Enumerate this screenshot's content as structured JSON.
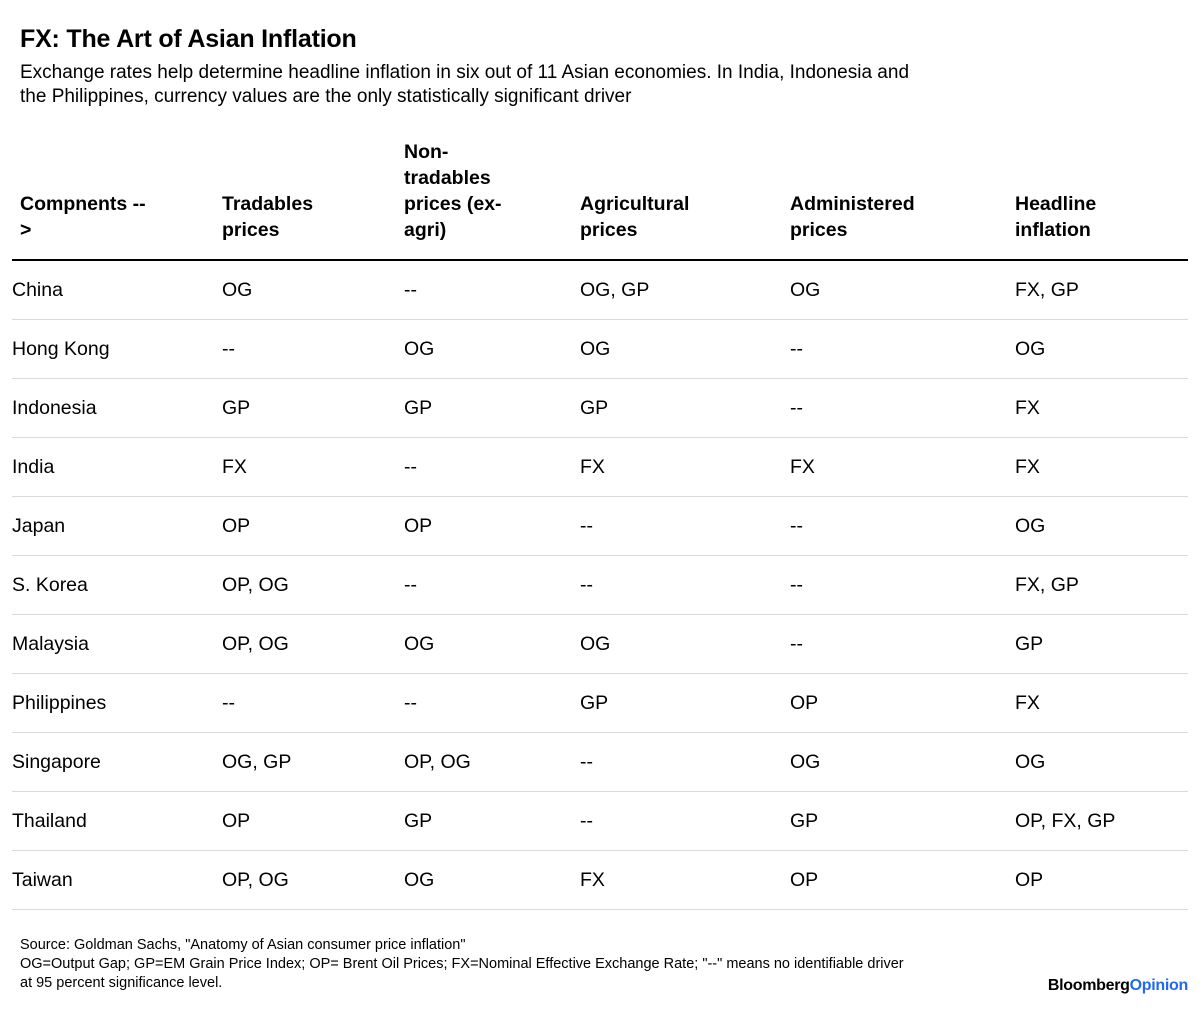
{
  "page": {
    "title": "FX: The Art of Asian Inflation",
    "subtitle": "Exchange rates help determine headline inflation in six out of 11 Asian economies. In India, Indonesia and\nthe Philippines, currency values are the only statistically significant driver"
  },
  "chart_data": {
    "type": "table",
    "title": "FX: The Art of Asian Inflation",
    "subtitle": "Exchange rates help determine headline inflation in six out of 11 Asian economies. In India, Indonesia and the Philippines, currency values are the only statistically significant driver",
    "columns": [
      "Compnents -- >",
      "Tradables prices",
      "Non-tradables prices (ex-agri)",
      "Agricultural prices",
      "Administered prices",
      "Headline inflation"
    ],
    "column_labels_wrapped": [
      "Compnents --\n>",
      "Tradables\nprices",
      "Non-\ntradables\nprices (ex-\nagri)",
      "Agricultural\nprices",
      "Administered\nprices",
      "Headline\ninflation"
    ],
    "rows": [
      {
        "country": "China",
        "cells": [
          "OG",
          "--",
          "OG, GP",
          "OG",
          "FX, GP"
        ]
      },
      {
        "country": "Hong Kong",
        "cells": [
          "--",
          "OG",
          "OG",
          "--",
          "OG"
        ]
      },
      {
        "country": "Indonesia",
        "cells": [
          "GP",
          "GP",
          "GP",
          "--",
          "FX"
        ]
      },
      {
        "country": "India",
        "cells": [
          "FX",
          "--",
          "FX",
          "FX",
          "FX"
        ]
      },
      {
        "country": "Japan",
        "cells": [
          "OP",
          "OP",
          "--",
          "--",
          "OG"
        ]
      },
      {
        "country": "S. Korea",
        "cells": [
          "OP, OG",
          "--",
          "--",
          "--",
          "FX, GP"
        ]
      },
      {
        "country": "Malaysia",
        "cells": [
          "OP, OG",
          "OG",
          "OG",
          "--",
          "GP"
        ]
      },
      {
        "country": "Philippines",
        "cells": [
          "--",
          "--",
          "GP",
          "OP",
          "FX"
        ]
      },
      {
        "country": "Singapore",
        "cells": [
          "OG, GP",
          "OP, OG",
          "--",
          "OG",
          "OG"
        ]
      },
      {
        "country": "Thailand",
        "cells": [
          "OP",
          "GP",
          "--",
          "GP",
          "OP, FX, GP"
        ]
      },
      {
        "country": "Taiwan",
        "cells": [
          "OP, OG",
          "OG",
          "FX",
          "OP",
          "OP"
        ]
      }
    ],
    "source": "Source: Goldman Sachs, \"Anatomy of Asian consumer price inflation\"",
    "notes": "OG=Output Gap; GP=EM Grain Price Index; OP= Brent Oil Prices; FX=Nominal Effective Exchange Rate; \"--\" means no identifiable driver\nat 95 percent significance level."
  },
  "footer": {
    "logo_brand": "Bloomberg",
    "logo_section": "Opinion"
  },
  "colors": {
    "text": "#000000",
    "opinion_blue": "#2069f0",
    "rule_dark": "#000000",
    "rule_light": "#d9d9d9"
  }
}
